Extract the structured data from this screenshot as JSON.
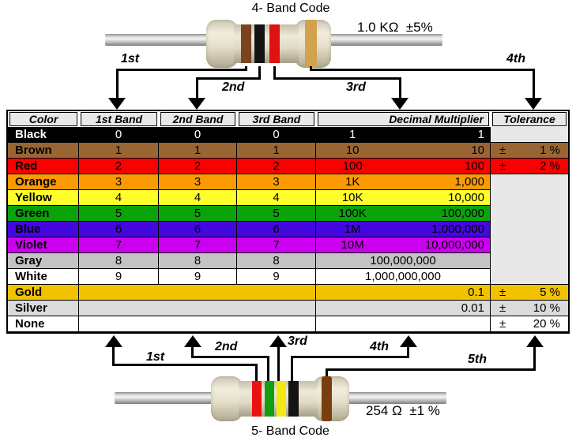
{
  "top_figure": {
    "title": "4- Band Code",
    "value_label": "1.0 KΩ  ±5%",
    "pointers": [
      {
        "label": "1st"
      },
      {
        "label": "2nd"
      },
      {
        "label": "3rd"
      },
      {
        "label": "4th"
      }
    ],
    "bands": [
      {
        "name": "brown",
        "color": "#7B4420"
      },
      {
        "name": "black",
        "color": "#141414"
      },
      {
        "name": "red",
        "color": "#DE1212"
      },
      {
        "name": "gold",
        "color": "#D2A24C"
      }
    ]
  },
  "table": {
    "headers": {
      "color": "Color",
      "band1": "1st Band",
      "band2": "2nd Band",
      "band3": "3rd Band",
      "multiplier": "Decimal Multiplier",
      "tolerance": "Tolerance"
    },
    "empty_tolerance_bg": "#E8E8E8",
    "rows": [
      {
        "name": "Black",
        "bg": "#000000",
        "fg": "#FFFFFF",
        "b1": "0",
        "b2": "0",
        "b3": "0",
        "mShort": "1",
        "mFull": "1"
      },
      {
        "name": "Brown",
        "bg": "#996633",
        "b1": "1",
        "b2": "1",
        "b3": "1",
        "mShort": "10",
        "mFull": "10",
        "tolSign": "±",
        "tolVal": "1 %"
      },
      {
        "name": "Red",
        "bg": "#FB0000",
        "b1": "2",
        "b2": "2",
        "b3": "2",
        "mShort": "100",
        "mFull": "100",
        "tolSign": "±",
        "tolVal": "2 %"
      },
      {
        "name": "Orange",
        "bg": "#FC9A03",
        "b1": "3",
        "b2": "3",
        "b3": "3",
        "mShort": "1K",
        "mFull": "1,000"
      },
      {
        "name": "Yellow",
        "bg": "#FFFF2A",
        "b1": "4",
        "b2": "4",
        "b3": "4",
        "mShort": "10K",
        "mFull": "10,000"
      },
      {
        "name": "Green",
        "bg": "#0AA30A",
        "b1": "5",
        "b2": "5",
        "b3": "5",
        "mShort": "100K",
        "mFull": "100,000"
      },
      {
        "name": "Blue",
        "bg": "#4407DE",
        "b1": "6",
        "b2": "6",
        "b3": "6",
        "mShort": "1M",
        "mFull": "1,000,000"
      },
      {
        "name": "Violet",
        "bg": "#CC00F0",
        "b1": "7",
        "b2": "7",
        "b3": "7",
        "mShort": "10M",
        "mFull": "10,000,000"
      },
      {
        "name": "Gray",
        "bg": "#C3C3C3",
        "b1": "8",
        "b2": "8",
        "b3": "8",
        "mCenter": "100,000,000"
      },
      {
        "name": "White",
        "bg": "#FFFFFF",
        "b1": "9",
        "b2": "9",
        "b3": "9",
        "mCenter": "1,000,000,000"
      },
      {
        "name": "Gold",
        "bg": "#F2C101",
        "merged": true,
        "mFull": "0.1",
        "tolSign": "±",
        "tolVal": "5 %"
      },
      {
        "name": "Silver",
        "bg": "#DBDBDB",
        "merged": true,
        "mFull": "0.01",
        "tolSign": "±",
        "tolVal": "10 %"
      },
      {
        "name": "None",
        "bg": "#FFFFFF",
        "merged": true,
        "tolSign": "±",
        "tolVal": "20 %"
      }
    ]
  },
  "bottom_figure": {
    "title": "5- Band Code",
    "value_label": "254 Ω  ±1 %",
    "pointers": [
      {
        "label": "1st"
      },
      {
        "label": "2nd"
      },
      {
        "label": "3rd"
      },
      {
        "label": "4th"
      },
      {
        "label": "5th"
      }
    ],
    "bands": [
      {
        "name": "red",
        "color": "#E91111"
      },
      {
        "name": "green",
        "color": "#12A012"
      },
      {
        "name": "yellow",
        "color": "#F4E911"
      },
      {
        "name": "black",
        "color": "#141414"
      },
      {
        "name": "brown",
        "color": "#7A3D10"
      }
    ]
  }
}
